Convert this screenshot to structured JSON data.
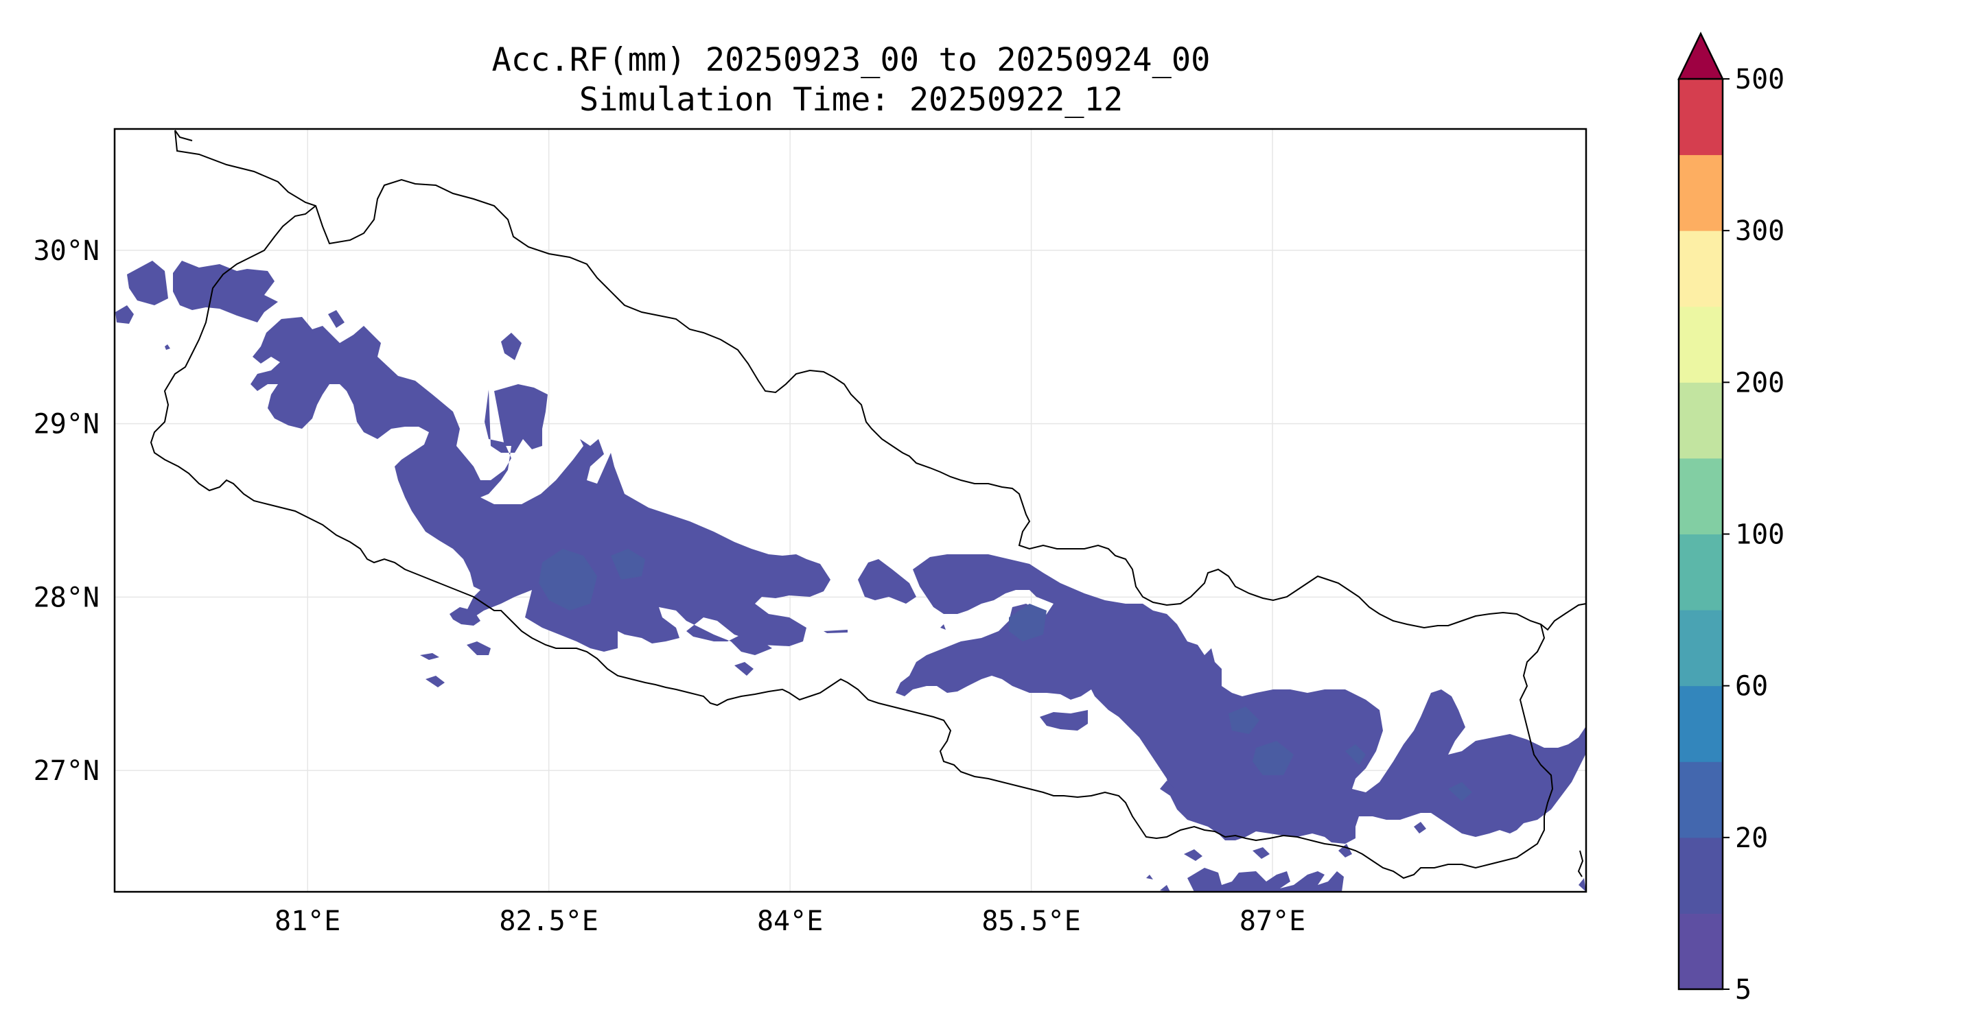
{
  "title_line1": "Acc.RF(mm) 20250923_00 to 20250924_00",
  "title_line2": "Simulation Time: 20250922_12",
  "map": {
    "lon_range": [
      79.8,
      88.95
    ],
    "lat_range": [
      26.3,
      30.7
    ],
    "x_ticks": [
      {
        "value": 81.0,
        "label": "81°E"
      },
      {
        "value": 82.5,
        "label": "82.5°E"
      },
      {
        "value": 84.0,
        "label": "84°E"
      },
      {
        "value": 85.5,
        "label": "85.5°E"
      },
      {
        "value": 87.0,
        "label": "87°E"
      }
    ],
    "y_ticks": [
      {
        "value": 30,
        "label": "30°N"
      },
      {
        "value": 29,
        "label": "29°N"
      },
      {
        "value": 28,
        "label": "28°N"
      },
      {
        "value": 27,
        "label": "27°N"
      }
    ],
    "gridlines": true,
    "rain_fill_color": "#5353a4",
    "rain_dark_color": "#47589c",
    "rain_patch_color": "#3f6aa6"
  },
  "colorbar": {
    "levels": [
      5,
      10,
      20,
      40,
      60,
      80,
      100,
      150,
      200,
      250,
      300,
      400,
      500
    ],
    "colors": [
      "#5e4fa2",
      "#5054a2",
      "#4367ae",
      "#3386bc",
      "#4aa3b3",
      "#5cb7a9",
      "#82ceA3",
      "#c2e4a0",
      "#ecf7a2",
      "#fdefa5",
      "#fdae61",
      "#d53e4f"
    ],
    "extend_color": "#9e0142",
    "tick_labels": [
      {
        "value": 5,
        "label": "5"
      },
      {
        "value": 20,
        "label": "20"
      },
      {
        "value": 60,
        "label": "60"
      },
      {
        "value": 100,
        "label": "100"
      },
      {
        "value": 200,
        "label": "200"
      },
      {
        "value": 300,
        "label": "300"
      },
      {
        "value": 500,
        "label": "500"
      }
    ],
    "extend": "max"
  }
}
